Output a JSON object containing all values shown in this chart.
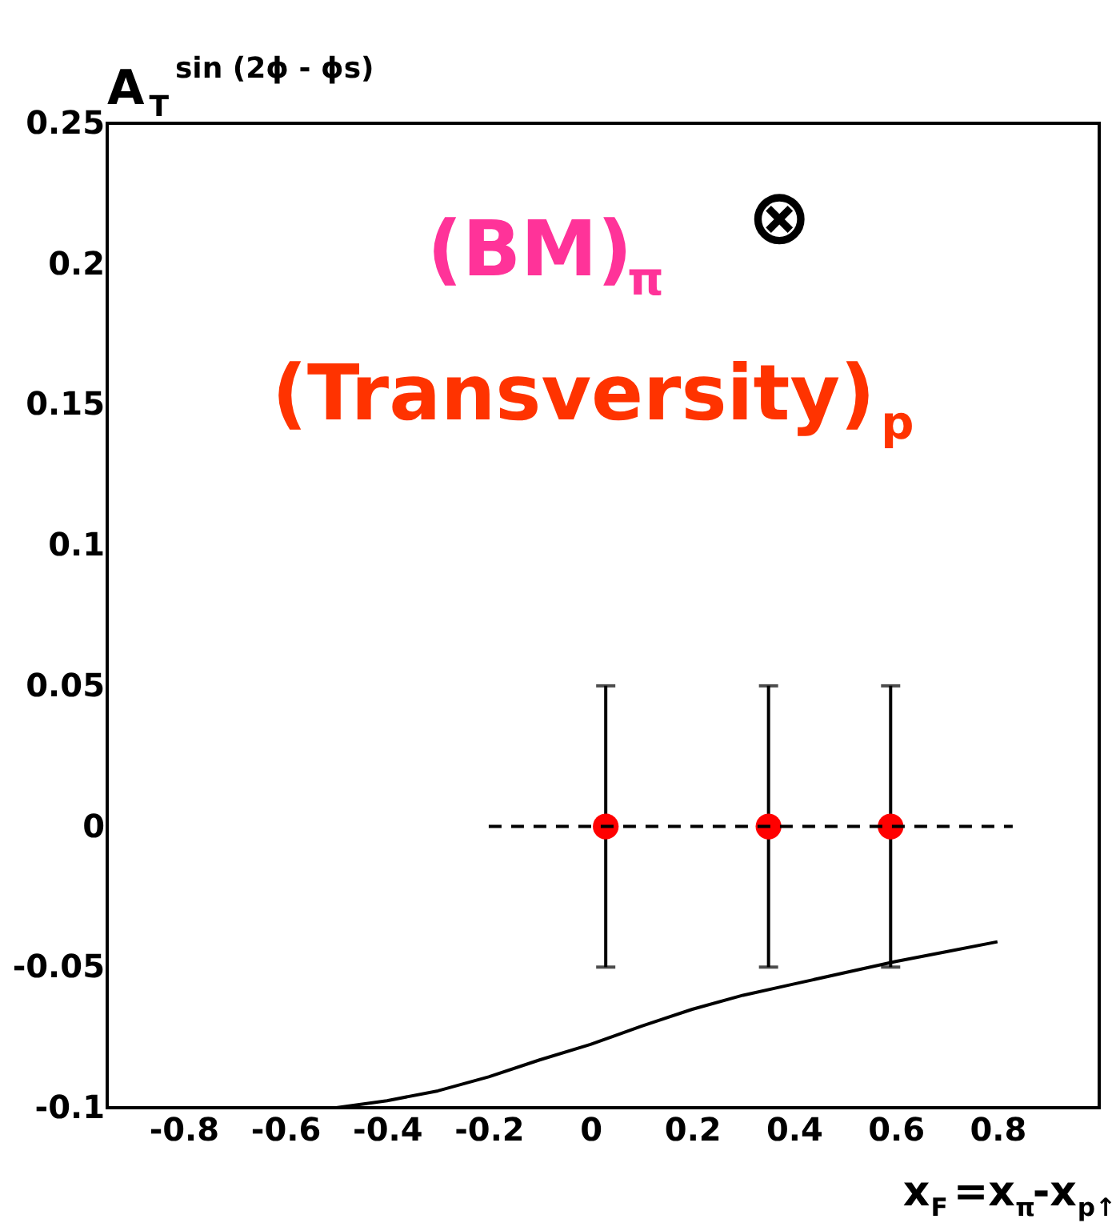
{
  "chart_data": {
    "type": "scatter",
    "xlabel": "x$_{F}$=x$_{π}$-x$_{p↑}$",
    "ylabel": "A$_{T}$$^{sin (2ϕ - ϕs)}$",
    "annotations": [
      "(BM)$_{π}$",
      "⊗",
      "(Transversity)$_{p}$"
    ],
    "xlim": [
      -0.95,
      1.0
    ],
    "ylim": [
      -0.1,
      0.25
    ],
    "xticks": [
      -0.8,
      -0.6,
      -0.4,
      -0.2,
      0,
      0.2,
      0.4,
      0.6,
      0.8
    ],
    "yticks": [
      -0.1,
      -0.05,
      0,
      0.05,
      0.1,
      0.15,
      0.2,
      0.25
    ],
    "grid": false,
    "series": [
      {
        "marker": "circle",
        "color": "#ff0000",
        "x": [
          0.03,
          0.35,
          0.59
        ],
        "values": [
          0,
          0,
          0
        ],
        "errors": [
          0.05,
          0.05,
          0.05
        ]
      },
      {
        "type": "line",
        "marker": "none",
        "color": "#000000",
        "line_style": "dashed",
        "x": [
          -0.2,
          0.83
        ],
        "values": [
          0,
          0
        ]
      },
      {
        "type": "line",
        "marker": "none",
        "color": "#000000",
        "line_style": "solid",
        "x": [
          -0.5,
          -0.4,
          -0.3,
          -0.2,
          -0.1,
          0,
          0.1,
          0.2,
          0.3,
          0.4,
          0.5,
          0.6,
          0.7,
          0.8
        ],
        "values": [
          -0.1,
          -0.0975,
          -0.094,
          -0.089,
          -0.083,
          -0.0775,
          -0.071,
          -0.065,
          -0.06,
          -0.056,
          -0.052,
          -0.048,
          -0.0445,
          -0.041
        ]
      }
    ]
  }
}
